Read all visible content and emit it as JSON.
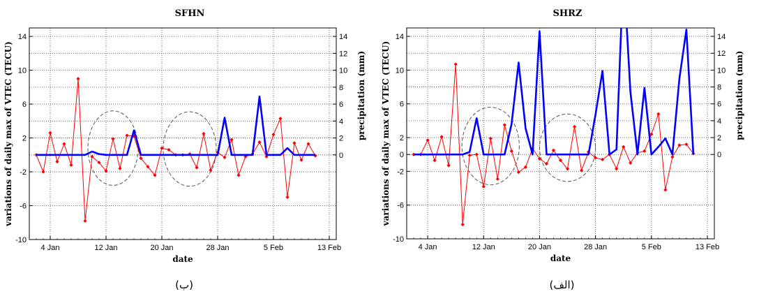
{
  "chart_data": [
    {
      "type": "line",
      "panel_caption": "(ب)",
      "title": "SFHN",
      "xlabel": "date",
      "ylabel_left": "variations of daily max of VTEC (TECU)",
      "ylabel_right": "precipitation (mm)",
      "x_range": [
        "2025-01-01",
        "2025-02-14"
      ],
      "y_left_range": [
        -10,
        15
      ],
      "y_right_range": [
        -10,
        15
      ],
      "y_left_ticks": [
        14,
        10,
        6,
        2,
        -2,
        -6,
        -10
      ],
      "y_left_tick_labels": [
        "14",
        "10",
        "6",
        "2",
        "-2",
        "-6",
        "-10"
      ],
      "y_right_ticks": [
        14,
        12,
        10,
        8,
        6,
        4,
        2,
        0
      ],
      "y_right_tick_labels": [
        "14",
        "12",
        "10",
        "8",
        "6",
        "4",
        "2",
        "0"
      ],
      "x_ticks": [
        "2025-01-04",
        "2025-01-12",
        "2025-01-20",
        "2025-01-28",
        "2025-02-05",
        "2025-02-13"
      ],
      "x_tick_labels": [
        "4 Jan",
        "12 Jan",
        "20 Jan",
        "28 Jan",
        "5 Feb",
        "13 Feb"
      ],
      "grid": true,
      "series": [
        {
          "color": "#ff0000",
          "marker": "diamond",
          "x": [
            "2025-01-02",
            "2025-01-03",
            "2025-01-04",
            "2025-01-05",
            "2025-01-06",
            "2025-01-07",
            "2025-01-08",
            "2025-01-09",
            "2025-01-10",
            "2025-01-11",
            "2025-01-12",
            "2025-01-13",
            "2025-01-14",
            "2025-01-15",
            "2025-01-16",
            "2025-01-17",
            "2025-01-18",
            "2025-01-19",
            "2025-01-20",
            "2025-01-21",
            "2025-01-22",
            "2025-01-23",
            "2025-01-24",
            "2025-01-25",
            "2025-01-26",
            "2025-01-27",
            "2025-01-28",
            "2025-01-29",
            "2025-01-30",
            "2025-01-31",
            "2025-02-01",
            "2025-02-02",
            "2025-02-03",
            "2025-02-04",
            "2025-02-05",
            "2025-02-06",
            "2025-02-07",
            "2025-02-08",
            "2025-02-09",
            "2025-02-10",
            "2025-02-11"
          ],
          "y": [
            0,
            -2,
            2.6,
            -0.8,
            1.3,
            -1.2,
            9,
            -7.8,
            -0.2,
            -0.9,
            -1.9,
            1.9,
            -1.6,
            2.3,
            2.2,
            -0.4,
            -1.4,
            -2.4,
            0.8,
            0.6,
            0,
            0,
            0.1,
            -1.5,
            2.5,
            -1.8,
            0.3,
            -0.3,
            1.8,
            -2.4,
            -0.2,
            0.1,
            1.5,
            -0.2,
            2.4,
            4.3,
            -5,
            1.4,
            -0.6,
            1.3,
            -0.1
          ]
        },
        {
          "color": "#0000ff",
          "marker": "none",
          "x": [
            "2025-01-02",
            "2025-01-03",
            "2025-01-04",
            "2025-01-05",
            "2025-01-06",
            "2025-01-07",
            "2025-01-08",
            "2025-01-09",
            "2025-01-10",
            "2025-01-11",
            "2025-01-12",
            "2025-01-13",
            "2025-01-14",
            "2025-01-15",
            "2025-01-16",
            "2025-01-17",
            "2025-01-18",
            "2025-01-19",
            "2025-01-20",
            "2025-01-21",
            "2025-01-22",
            "2025-01-23",
            "2025-01-24",
            "2025-01-25",
            "2025-01-26",
            "2025-01-27",
            "2025-01-28",
            "2025-01-29",
            "2025-01-30",
            "2025-01-31",
            "2025-02-01",
            "2025-02-02",
            "2025-02-03",
            "2025-02-04",
            "2025-02-05",
            "2025-02-06",
            "2025-02-07",
            "2025-02-08",
            "2025-02-09",
            "2025-02-10",
            "2025-02-11"
          ],
          "y": [
            0,
            0,
            0,
            0,
            0,
            0,
            0,
            0,
            0.4,
            0.1,
            0,
            0,
            0,
            0,
            2.9,
            0,
            0,
            0,
            0,
            0,
            0,
            0,
            0,
            0,
            0,
            0,
            0,
            4.4,
            0,
            0,
            0,
            0,
            6.9,
            0,
            0,
            0,
            0.8,
            0,
            0,
            0,
            0
          ]
        }
      ],
      "annotations": [
        {
          "type": "ellipse",
          "center_x": "2025-01-13",
          "center_y": 0.8,
          "half_width_days": 3.6,
          "half_height": 4.4
        },
        {
          "type": "ellipse",
          "center_x": "2025-01-24",
          "center_y": 0.7,
          "half_width_days": 3.8,
          "half_height": 4.4
        }
      ]
    },
    {
      "type": "line",
      "panel_caption": "(الف)",
      "title": "SHRZ",
      "xlabel": "date",
      "ylabel_left": "variations of daily max of VTEC (TECU)",
      "ylabel_right": "precipitation (mm)",
      "x_range": [
        "2025-01-01",
        "2025-02-14"
      ],
      "y_left_range": [
        -10,
        15
      ],
      "y_right_range": [
        -10,
        15
      ],
      "y_left_ticks": [
        14,
        10,
        6,
        2,
        0,
        -2,
        -6,
        -10
      ],
      "y_left_tick_labels": [
        "14",
        "10",
        "6",
        "2",
        "0",
        "-2",
        "-6",
        "-10"
      ],
      "y_right_ticks": [
        14,
        12,
        10,
        8,
        6,
        4,
        2,
        0
      ],
      "y_right_tick_labels": [
        "14",
        "12",
        "10",
        "8",
        "6",
        "4",
        "2",
        "0"
      ],
      "x_ticks": [
        "2025-01-04",
        "2025-01-12",
        "2025-01-20",
        "2025-01-28",
        "2025-02-05",
        "2025-02-13"
      ],
      "x_tick_labels": [
        "4 Jan",
        "12 Jan",
        "20 Jan",
        "28 Jan",
        "5 Feb",
        "13 Feb"
      ],
      "grid": true,
      "series": [
        {
          "color": "#ff0000",
          "marker": "diamond",
          "x": [
            "2025-01-02",
            "2025-01-03",
            "2025-01-04",
            "2025-01-05",
            "2025-01-06",
            "2025-01-07",
            "2025-01-08",
            "2025-01-09",
            "2025-01-10",
            "2025-01-11",
            "2025-01-12",
            "2025-01-13",
            "2025-01-14",
            "2025-01-15",
            "2025-01-16",
            "2025-01-17",
            "2025-01-18",
            "2025-01-19",
            "2025-01-20",
            "2025-01-21",
            "2025-01-22",
            "2025-01-23",
            "2025-01-24",
            "2025-01-25",
            "2025-01-26",
            "2025-01-27",
            "2025-01-28",
            "2025-01-29",
            "2025-01-30",
            "2025-01-31",
            "2025-02-01",
            "2025-02-02",
            "2025-02-03",
            "2025-02-04",
            "2025-02-05",
            "2025-02-06",
            "2025-02-07",
            "2025-02-08",
            "2025-02-09",
            "2025-02-10",
            "2025-02-11"
          ],
          "y": [
            0,
            0,
            1.7,
            -0.7,
            2.1,
            -1.3,
            10.7,
            -8.3,
            -0.1,
            0,
            -3.8,
            1.9,
            -2.9,
            3.5,
            0.4,
            -2.1,
            -1.5,
            0.7,
            -0.5,
            -1.1,
            0.5,
            -0.7,
            -1.7,
            3.3,
            -1.9,
            0.3,
            -0.4,
            -0.6,
            0,
            -1.7,
            0.9,
            -1,
            0.2,
            0.4,
            2.4,
            4.8,
            -4.2,
            -0.3,
            1.1,
            1.2,
            0.1
          ]
        },
        {
          "color": "#0000ff",
          "marker": "none",
          "x": [
            "2025-01-02",
            "2025-01-03",
            "2025-01-04",
            "2025-01-05",
            "2025-01-06",
            "2025-01-07",
            "2025-01-08",
            "2025-01-09",
            "2025-01-10",
            "2025-01-11",
            "2025-01-12",
            "2025-01-13",
            "2025-01-14",
            "2025-01-15",
            "2025-01-16",
            "2025-01-17",
            "2025-01-18",
            "2025-01-19",
            "2025-01-20",
            "2025-01-21",
            "2025-01-22",
            "2025-01-23",
            "2025-01-24",
            "2025-01-25",
            "2025-01-26",
            "2025-01-27",
            "2025-01-28",
            "2025-01-29",
            "2025-01-30",
            "2025-01-31",
            "2025-02-01",
            "2025-02-02",
            "2025-02-03",
            "2025-02-04",
            "2025-02-05",
            "2025-02-06",
            "2025-02-07",
            "2025-02-08",
            "2025-02-09",
            "2025-02-10",
            "2025-02-11"
          ],
          "y": [
            0,
            0,
            0,
            0,
            0,
            0,
            0,
            0,
            0.3,
            4.3,
            0,
            0,
            0,
            0,
            3.6,
            10.9,
            3.1,
            0,
            14.6,
            0,
            0,
            0,
            0,
            0,
            0,
            0,
            4.7,
            9.9,
            0,
            0.6,
            22,
            7.4,
            0,
            7.9,
            0,
            0.9,
            1.9,
            0,
            9,
            14.8,
            0
          ]
        }
      ],
      "annotations": [
        {
          "type": "ellipse",
          "center_x": "2025-01-13",
          "center_y": 1.0,
          "half_width_days": 4.1,
          "half_height": 4.6
        },
        {
          "type": "ellipse",
          "center_x": "2025-01-24",
          "center_y": 0.8,
          "half_width_days": 4.0,
          "half_height": 4.0
        }
      ]
    }
  ]
}
